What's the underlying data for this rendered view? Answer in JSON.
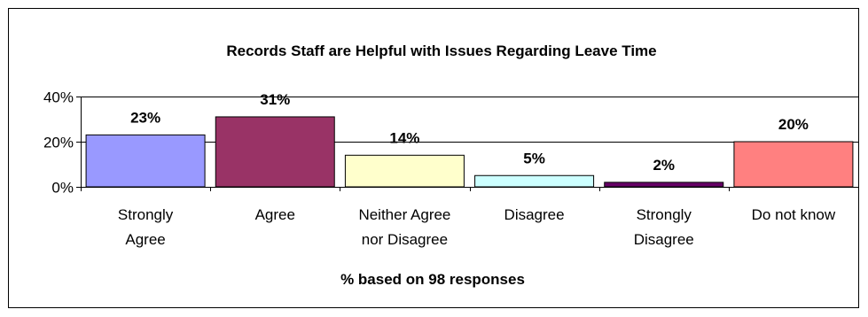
{
  "chart_data": {
    "type": "bar",
    "title": "Records Staff are Helpful with Issues Regarding Leave Time",
    "xlabel": "% based on 98 responses",
    "ylabel": "",
    "ylim": [
      0,
      40
    ],
    "y_ticks": [
      "0%",
      "20%",
      "40%"
    ],
    "y_tick_values": [
      0,
      20,
      40
    ],
    "categories": [
      [
        "Strongly",
        "Agree"
      ],
      [
        "Agree"
      ],
      [
        "Neither Agree",
        "nor Disagree"
      ],
      [
        "Disagree"
      ],
      [
        "Strongly",
        "Disagree"
      ],
      [
        "Do not know"
      ]
    ],
    "values": [
      23,
      31,
      14,
      5,
      2,
      20
    ],
    "data_labels": [
      "23%",
      "31%",
      "14%",
      "5%",
      "2%",
      "20%"
    ],
    "colors": [
      "#9999ff",
      "#993366",
      "#ffffcc",
      "#ccffff",
      "#660066",
      "#ff8080"
    ],
    "grid": true,
    "legend": "none"
  }
}
